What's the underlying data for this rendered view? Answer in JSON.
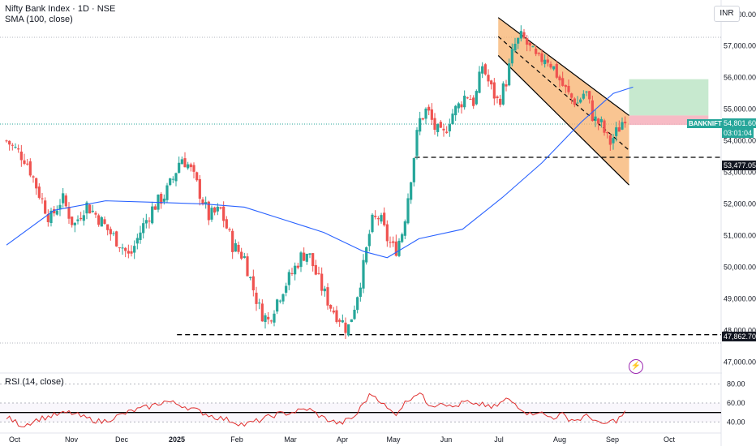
{
  "header": {
    "title": "Nifty Bank Index · 1D · NSE",
    "indicator": "SMA (100, close)",
    "currency": "INR"
  },
  "rsi": {
    "label": "RSI (14, close)",
    "levels": [
      80,
      60,
      40
    ]
  },
  "price_tags": {
    "symbol": "BANKNIFTY",
    "last_price": "54,801.60",
    "countdown": "03:01:04",
    "support_1": "53,477.05",
    "support_2": "47,862.70"
  },
  "colors": {
    "up": "#26a69a",
    "down": "#ef5350",
    "sma": "#2962ff",
    "channel": "#f7b26d",
    "target_zone": "#b9e4c3",
    "stop_zone": "#f6b4bf",
    "rsi": "#e0302f"
  },
  "icons": {
    "alert": "lightning-icon"
  },
  "chart_data": {
    "type": "candlestick",
    "ylim": [
      46700,
      58200
    ],
    "y_ticks": [
      "58,000.00",
      "57,000.00",
      "56,000.00",
      "55,000.00",
      "54,000.00",
      "53,000.00",
      "52,000.00",
      "51,000.00",
      "50,000.00",
      "49,000.00",
      "48,000.00",
      "47,000.00"
    ],
    "x_ticks": [
      "Oct",
      "Nov",
      "Dec",
      "2025",
      "Feb",
      "Mar",
      "Apr",
      "May",
      "Jun",
      "Jul",
      "Aug",
      "Sep",
      "Oct"
    ],
    "close_path": [
      [
        0,
        54000
      ],
      [
        5,
        53400
      ],
      [
        8,
        52400
      ],
      [
        11,
        51500
      ],
      [
        14,
        52200
      ],
      [
        17,
        51300
      ],
      [
        20,
        52000
      ],
      [
        23,
        51600
      ],
      [
        26,
        51100
      ],
      [
        29,
        50700
      ],
      [
        31,
        50300
      ],
      [
        34,
        51200
      ],
      [
        37,
        51900
      ],
      [
        40,
        52300
      ],
      [
        42,
        52800
      ],
      [
        44,
        53500
      ],
      [
        46,
        53200
      ],
      [
        48,
        52600
      ],
      [
        51,
        51600
      ],
      [
        54,
        51800
      ],
      [
        57,
        50700
      ],
      [
        60,
        50300
      ],
      [
        62,
        49400
      ],
      [
        64,
        48600
      ],
      [
        66,
        48300
      ],
      [
        68,
        48900
      ],
      [
        70,
        49400
      ],
      [
        72,
        49800
      ],
      [
        74,
        50300
      ],
      [
        76,
        50500
      ],
      [
        78,
        49800
      ],
      [
        80,
        49200
      ],
      [
        82,
        48700
      ],
      [
        84,
        48400
      ],
      [
        86,
        48000
      ],
      [
        88,
        48900
      ],
      [
        90,
        50000
      ],
      [
        92,
        51400
      ],
      [
        94,
        51600
      ],
      [
        96,
        50900
      ],
      [
        98,
        50500
      ],
      [
        100,
        51200
      ],
      [
        102,
        52900
      ],
      [
        104,
        54600
      ],
      [
        106,
        55000
      ],
      [
        108,
        54400
      ],
      [
        110,
        54100
      ],
      [
        112,
        54800
      ],
      [
        114,
        55100
      ],
      [
        116,
        55500
      ],
      [
        118,
        55200
      ],
      [
        120,
        56400
      ],
      [
        122,
        55700
      ],
      [
        124,
        55200
      ],
      [
        126,
        55900
      ],
      [
        128,
        57000
      ],
      [
        130,
        57300
      ],
      [
        132,
        56900
      ],
      [
        134,
        56500
      ],
      [
        136,
        56700
      ],
      [
        138,
        56300
      ],
      [
        140,
        55800
      ],
      [
        142,
        55400
      ],
      [
        144,
        55200
      ],
      [
        146,
        55600
      ],
      [
        148,
        54700
      ],
      [
        150,
        54500
      ],
      [
        152,
        53900
      ],
      [
        154,
        54300
      ],
      [
        156,
        54800
      ]
    ],
    "sma_100": [
      [
        0,
        50700
      ],
      [
        12,
        51800
      ],
      [
        25,
        52100
      ],
      [
        38,
        52050
      ],
      [
        50,
        52000
      ],
      [
        60,
        51900
      ],
      [
        70,
        51500
      ],
      [
        80,
        51100
      ],
      [
        90,
        50500
      ],
      [
        96,
        50300
      ],
      [
        104,
        50900
      ],
      [
        115,
        51200
      ],
      [
        125,
        52200
      ],
      [
        135,
        53300
      ],
      [
        145,
        54600
      ],
      [
        153,
        55500
      ],
      [
        158,
        55700
      ]
    ],
    "horizontal_levels": [
      53477.05,
      47862.7
    ],
    "channel": {
      "upper": [
        [
          124,
          57900
        ],
        [
          157,
          54800
        ]
      ],
      "lower": [
        [
          124,
          56700
        ],
        [
          157,
          52600
        ]
      ],
      "mid": [
        [
          124,
          57300
        ],
        [
          157,
          53700
        ]
      ]
    },
    "position": {
      "entry": 54801.6,
      "target": 55950,
      "stop": 54500,
      "x_start": 157,
      "x_end": 177
    },
    "rsi_values": [
      [
        0,
        45
      ],
      [
        4,
        36
      ],
      [
        8,
        43
      ],
      [
        12,
        47
      ],
      [
        16,
        50
      ],
      [
        20,
        44
      ],
      [
        24,
        40
      ],
      [
        28,
        46
      ],
      [
        32,
        52
      ],
      [
        36,
        56
      ],
      [
        40,
        62
      ],
      [
        44,
        58
      ],
      [
        48,
        52
      ],
      [
        52,
        46
      ],
      [
        56,
        42
      ],
      [
        60,
        37
      ],
      [
        64,
        42
      ],
      [
        68,
        48
      ],
      [
        72,
        50
      ],
      [
        76,
        54
      ],
      [
        80,
        44
      ],
      [
        84,
        38
      ],
      [
        88,
        46
      ],
      [
        90,
        60
      ],
      [
        92,
        70
      ],
      [
        94,
        64
      ],
      [
        96,
        54
      ],
      [
        98,
        48
      ],
      [
        100,
        58
      ],
      [
        102,
        66
      ],
      [
        104,
        72
      ],
      [
        106,
        60
      ],
      [
        108,
        58
      ],
      [
        110,
        62
      ],
      [
        112,
        55
      ],
      [
        114,
        58
      ],
      [
        116,
        62
      ],
      [
        118,
        56
      ],
      [
        120,
        60
      ],
      [
        122,
        54
      ],
      [
        124,
        58
      ],
      [
        126,
        64
      ],
      [
        128,
        60
      ],
      [
        130,
        54
      ],
      [
        132,
        48
      ],
      [
        134,
        52
      ],
      [
        136,
        46
      ],
      [
        138,
        45
      ],
      [
        140,
        48
      ],
      [
        142,
        43
      ],
      [
        144,
        42
      ],
      [
        146,
        46
      ],
      [
        148,
        44
      ],
      [
        150,
        36
      ],
      [
        152,
        40
      ],
      [
        154,
        42
      ],
      [
        156,
        50
      ]
    ],
    "ticker_note": "BANKNIFTY"
  }
}
